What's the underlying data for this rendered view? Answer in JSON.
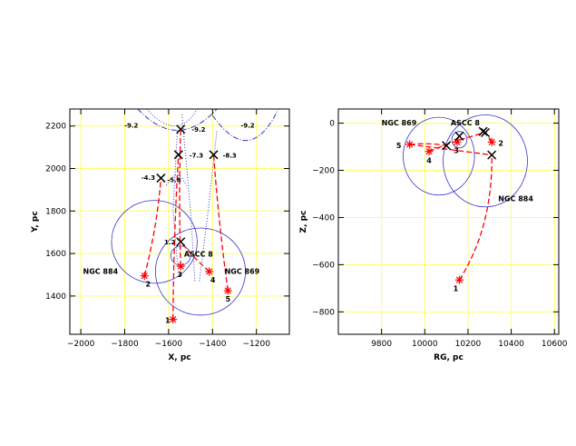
{
  "chart_data": [
    {
      "type": "scatter",
      "xlabel": "X, pc",
      "ylabel": "Y, pc",
      "xlim": [
        -2050,
        -1050
      ],
      "ylim": [
        1220,
        2280
      ],
      "xticks": [
        -2000,
        -1800,
        -1600,
        -1400,
        -1200
      ],
      "yticks": [
        1400,
        1600,
        1800,
        2000,
        2200
      ],
      "tick_labels_x": [
        "−2000",
        "−1800",
        "−1600",
        "−1400",
        "−1200"
      ],
      "tick_labels_y": [
        "1400",
        "1600",
        "1800",
        "2000",
        "2200"
      ],
      "grid": true,
      "stars": [
        {
          "label": "1",
          "x": -1580,
          "y": 1290
        },
        {
          "label": "2",
          "x": -1710,
          "y": 1495
        },
        {
          "label": "3",
          "x": -1545,
          "y": 1540
        },
        {
          "label": "4",
          "x": -1415,
          "y": 1515
        },
        {
          "label": "5",
          "x": -1330,
          "y": 1425
        }
      ],
      "crosses": [
        {
          "label": "-9.2",
          "x": -1545,
          "y": 2185
        },
        {
          "label": "-7.3",
          "x": -1555,
          "y": 2065
        },
        {
          "label": "-8.3",
          "x": -1395,
          "y": 2065
        },
        {
          "label": "-4.3",
          "x": -1635,
          "y": 1955
        },
        {
          "label": "1.2",
          "x": -1545,
          "y": 1655
        }
      ],
      "tracks": [
        {
          "from": "1",
          "to": "-7.3"
        },
        {
          "from": "2",
          "to": "-4.3"
        },
        {
          "from": "3",
          "to": "-9.2"
        },
        {
          "from": "4",
          "to": "1.2"
        },
        {
          "from": "5",
          "to": "-8.3"
        }
      ],
      "circles": [
        {
          "label": "NGC 884",
          "cx": -1665,
          "cy": 1655,
          "r": 195
        },
        {
          "label": "NGC 869",
          "cx": -1455,
          "cy": 1515,
          "r": 205
        },
        {
          "label": "ASCC 8",
          "cx": -1545,
          "cy": 1590,
          "r": 45
        }
      ],
      "extra_labels": [
        {
          "text": "-9.2",
          "x": -1770,
          "y": 2200
        },
        {
          "text": "-9.2",
          "x": -1240,
          "y": 2200
        },
        {
          "text": "-5.8",
          "x": -1575,
          "y": 1945
        }
      ]
    },
    {
      "type": "scatter",
      "xlabel": "RG, pc",
      "ylabel": "Z, pc",
      "xlim": [
        9600,
        10620
      ],
      "ylim": [
        -895,
        60
      ],
      "xticks": [
        9800,
        10000,
        10200,
        10400,
        10600
      ],
      "yticks": [
        -800,
        -600,
        -400,
        -200,
        0
      ],
      "tick_labels_x": [
        "9800",
        "10000",
        "10200",
        "10400",
        "10600"
      ],
      "tick_labels_y": [
        "−800",
        "−600",
        "−400",
        "−200",
        "0"
      ],
      "grid": true,
      "stars": [
        {
          "label": "1",
          "x": 10160,
          "y": -665
        },
        {
          "label": "2",
          "x": 10310,
          "y": -80
        },
        {
          "label": "3",
          "x": 10150,
          "y": -80
        },
        {
          "label": "4",
          "x": 10020,
          "y": -120
        },
        {
          "label": "5",
          "x": 9930,
          "y": -90
        }
      ],
      "crosses": [
        {
          "x": 10270,
          "y": -35
        },
        {
          "x": 10280,
          "y": -40
        },
        {
          "x": 10160,
          "y": -55
        },
        {
          "x": 10100,
          "y": -95
        },
        {
          "x": 10310,
          "y": -135
        }
      ],
      "circles": [
        {
          "label": "NGC 884",
          "cx": 10280,
          "cy": -160,
          "r": 195
        },
        {
          "label": "NGC 869",
          "cx": 10065,
          "cy": -140,
          "r": 165
        },
        {
          "label": "ASCC 8",
          "cx": 10160,
          "cy": -70,
          "r": 35
        }
      ]
    }
  ],
  "colors": {
    "grid": "#ffff66",
    "track": "#ff0000",
    "circle": "#3333cc",
    "dotted": "#3333cc",
    "star": "#ff0000",
    "cross": "#000000"
  }
}
